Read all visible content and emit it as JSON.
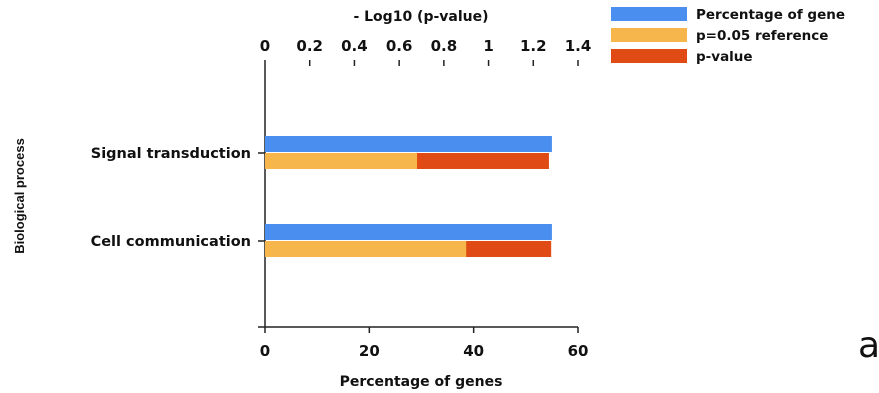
{
  "chart_data": {
    "type": "bar",
    "orientation": "horizontal",
    "categories": [
      "Signal transduction",
      "Cell communication"
    ],
    "series": [
      {
        "name": "Percentage of gene",
        "axis": "bottom",
        "values": [
          55,
          55
        ],
        "color": "#4a8ef0"
      },
      {
        "name": "p=0.05 reference",
        "axis": "top",
        "values": [
          0.68,
          0.9
        ],
        "color": "#f7b64c"
      },
      {
        "name": "p-value",
        "axis": "top",
        "values": [
          1.27,
          1.28
        ],
        "color": "#e04a14"
      }
    ],
    "xlabel_bottom": "Percentage of genes",
    "xlabel_top": "- Log10 (p-value)",
    "ylabel": "Biological process",
    "xlim_bottom": [
      0,
      60
    ],
    "xticks_bottom": [
      "0",
      "20",
      "40",
      "60"
    ],
    "xlim_top": [
      0,
      1.4
    ],
    "xticks_top": [
      "0",
      "0.2",
      "0.4",
      "0.6",
      "0.8",
      "1",
      "1.2",
      "1.4"
    ],
    "legend_position": "top-right",
    "grid": false,
    "panel_label": "a"
  }
}
